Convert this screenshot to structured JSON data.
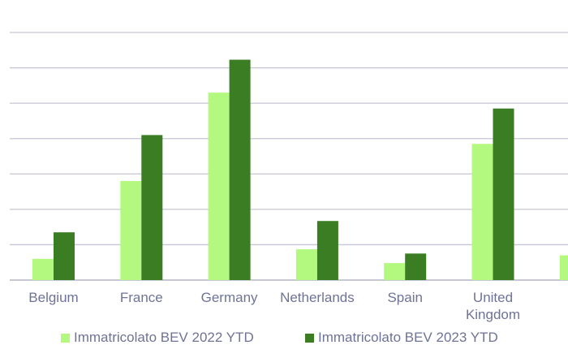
{
  "chart_data": {
    "type": "bar",
    "categories": [
      "Belgium",
      "France",
      "Germany",
      "Netherlands",
      "Spain",
      "United Kingdom",
      ""
    ],
    "series": [
      {
        "name": "Immatricolato BEV 2022 YTD",
        "color": "#b3f97f",
        "values": [
          6,
          28,
          53,
          8.7,
          4.8,
          38.5,
          7
        ]
      },
      {
        "name": "Immatricolato BEV 2023 YTD",
        "color": "#3a7d22",
        "values": [
          13.5,
          41,
          62.3,
          16.7,
          7.5,
          48.5,
          0
        ]
      }
    ],
    "ylim": [
      0,
      70
    ],
    "grid": true,
    "legend_position": "bottom"
  }
}
